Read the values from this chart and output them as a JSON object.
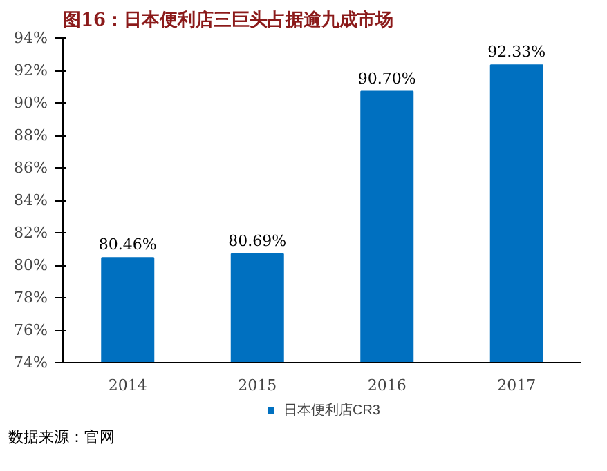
{
  "chart_data": {
    "type": "bar",
    "title": "图16：日本便利店三巨头占据逾九成市场",
    "categories": [
      "2014",
      "2015",
      "2016",
      "2017"
    ],
    "series": [
      {
        "name": "日本便利店CR3",
        "color": "#0070c0",
        "values": [
          80.46,
          80.69,
          90.7,
          92.33
        ],
        "value_labels": [
          "80.46%",
          "80.69%",
          "90.70%",
          "92.33%"
        ]
      }
    ],
    "ylim": [
      74,
      94
    ],
    "yticks": [
      {
        "value": 74,
        "label": "74%"
      },
      {
        "value": 76,
        "label": "76%"
      },
      {
        "value": 78,
        "label": "78%"
      },
      {
        "value": 80,
        "label": "80%"
      },
      {
        "value": 82,
        "label": "82%"
      },
      {
        "value": 84,
        "label": "84%"
      },
      {
        "value": 86,
        "label": "86%"
      },
      {
        "value": 88,
        "label": "88%"
      },
      {
        "value": 90,
        "label": "90%"
      },
      {
        "value": 92,
        "label": "92%"
      },
      {
        "value": 94,
        "label": "94%"
      }
    ],
    "grid": false,
    "legend": "bottom",
    "annotations": [
      "数据来源：官网"
    ]
  }
}
